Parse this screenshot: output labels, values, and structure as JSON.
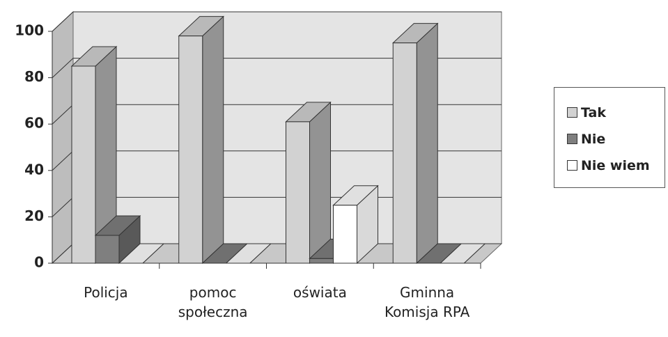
{
  "chart_data": {
    "type": "bar3d",
    "categories": [
      "Policja",
      "pomoc społeczna",
      "oświata",
      "Gminna Komisja RPA"
    ],
    "series": [
      {
        "name": "Tak",
        "color": "#d2d2d2",
        "values": [
          85,
          98,
          61,
          95
        ]
      },
      {
        "name": "Nie",
        "color": "#7f7f7f",
        "values": [
          12,
          0,
          2,
          0
        ]
      },
      {
        "name": "Nie wiem",
        "color": "#ffffff",
        "values": [
          0,
          0,
          25,
          0
        ]
      }
    ],
    "ylim": [
      0,
      100
    ],
    "yticks": [
      0,
      20,
      40,
      60,
      80,
      100
    ],
    "grid": true
  }
}
